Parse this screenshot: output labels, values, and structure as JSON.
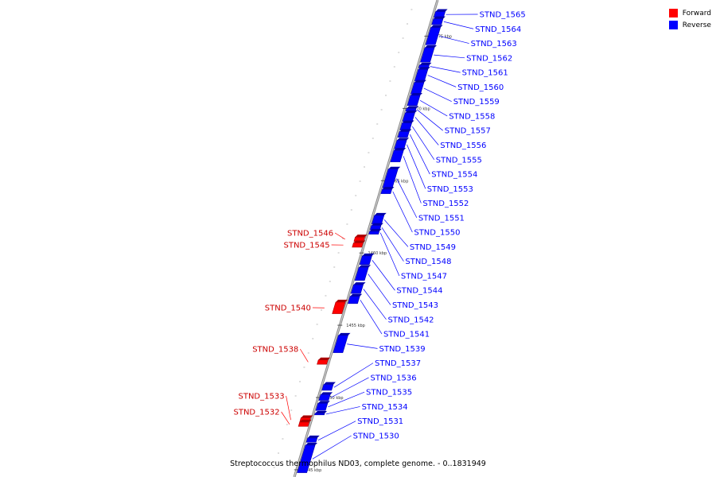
{
  "caption": "Streptococcus thermophilus ND03, complete genome. - 0..1831949",
  "legend": [
    {
      "label": "Forward",
      "color": "#ff0000"
    },
    {
      "label": "Reverse",
      "color": "#0000ff"
    }
  ],
  "ruler_labels": [
    "1475 kbp",
    "1470 kbp",
    "1465 kbp",
    "1460 kbp",
    "1455 kbp",
    "1450 kbp",
    "1445 kbp"
  ],
  "genes": [
    {
      "name": "STND_1565",
      "strand": "reverse",
      "start": 1476.7,
      "end": 1476.3
    },
    {
      "name": "STND_1564",
      "strand": "reverse",
      "start": 1476.2,
      "end": 1475.8
    },
    {
      "name": "STND_1563",
      "strand": "reverse",
      "start": 1475.6,
      "end": 1474.4
    },
    {
      "name": "STND_1562",
      "strand": "reverse",
      "start": 1474.2,
      "end": 1473.2
    },
    {
      "name": "STND_1561",
      "strand": "reverse",
      "start": 1473.0,
      "end": 1472.8
    },
    {
      "name": "STND_1560",
      "strand": "reverse",
      "start": 1472.7,
      "end": 1471.9
    },
    {
      "name": "STND_1559",
      "strand": "reverse",
      "start": 1471.8,
      "end": 1471.0
    },
    {
      "name": "STND_1558",
      "strand": "reverse",
      "start": 1470.9,
      "end": 1470.2
    },
    {
      "name": "STND_1557",
      "strand": "reverse",
      "start": 1470.0,
      "end": 1469.8
    },
    {
      "name": "STND_1556",
      "strand": "reverse",
      "start": 1469.7,
      "end": 1469.1
    },
    {
      "name": "STND_1555",
      "strand": "reverse",
      "start": 1469.0,
      "end": 1468.5
    },
    {
      "name": "STND_1554",
      "strand": "reverse",
      "start": 1468.4,
      "end": 1468.0
    },
    {
      "name": "STND_1553",
      "strand": "reverse",
      "start": 1467.8,
      "end": 1467.2
    },
    {
      "name": "STND_1552",
      "strand": "reverse",
      "start": 1467.1,
      "end": 1466.3
    },
    {
      "name": "STND_1551",
      "strand": "reverse",
      "start": 1465.8,
      "end": 1464.5
    },
    {
      "name": "STND_1550",
      "strand": "reverse",
      "start": 1464.4,
      "end": 1464.1
    },
    {
      "name": "STND_1549",
      "strand": "reverse",
      "start": 1462.6,
      "end": 1462.0
    },
    {
      "name": "STND_1548",
      "strand": "reverse",
      "start": 1461.9,
      "end": 1461.6
    },
    {
      "name": "STND_1547",
      "strand": "reverse",
      "start": 1461.5,
      "end": 1461.3
    },
    {
      "name": "STND_1546",
      "strand": "forward",
      "start": 1460.8,
      "end": 1461.1
    },
    {
      "name": "STND_1545",
      "strand": "forward",
      "start": 1460.4,
      "end": 1460.7
    },
    {
      "name": "STND_1544",
      "strand": "reverse",
      "start": 1459.8,
      "end": 1459.2
    },
    {
      "name": "STND_1543",
      "strand": "reverse",
      "start": 1459.0,
      "end": 1458.1
    },
    {
      "name": "STND_1542",
      "strand": "reverse",
      "start": 1457.8,
      "end": 1457.2
    },
    {
      "name": "STND_1541",
      "strand": "reverse",
      "start": 1457.0,
      "end": 1456.5
    },
    {
      "name": "STND_1540",
      "strand": "forward",
      "start": 1455.8,
      "end": 1456.6
    },
    {
      "name": "STND_1539",
      "strand": "reverse",
      "start": 1454.3,
      "end": 1453.1
    },
    {
      "name": "STND_1538",
      "strand": "forward",
      "start": 1452.3,
      "end": 1452.6
    },
    {
      "name": "STND_1537",
      "strand": "reverse",
      "start": 1450.9,
      "end": 1450.5
    },
    {
      "name": "STND_1536",
      "strand": "reverse",
      "start": 1450.2,
      "end": 1449.8
    },
    {
      "name": "STND_1535",
      "strand": "reverse",
      "start": 1449.6,
      "end": 1449.1
    },
    {
      "name": "STND_1534",
      "strand": "reverse",
      "start": 1448.9,
      "end": 1448.8
    },
    {
      "name": "STND_1533",
      "strand": "forward",
      "start": 1448.3,
      "end": 1448.6
    },
    {
      "name": "STND_1532",
      "strand": "forward",
      "start": 1448.0,
      "end": 1448.3
    },
    {
      "name": "STND_1531",
      "strand": "reverse",
      "start": 1447.2,
      "end": 1446.9
    },
    {
      "name": "STND_1530",
      "strand": "reverse",
      "start": 1446.7,
      "end": 1444.8
    }
  ]
}
